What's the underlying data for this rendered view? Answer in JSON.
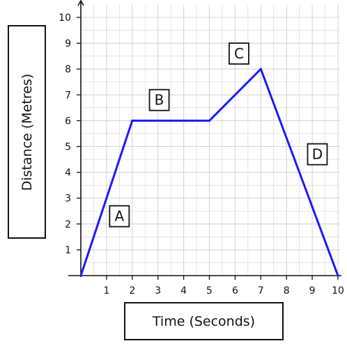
{
  "chart_data": {
    "type": "line",
    "xlabel": "Time (Seconds)",
    "ylabel": "Distance (Metres)",
    "xlim": [
      0,
      10
    ],
    "ylim": [
      0,
      10
    ],
    "x_ticks": [
      1,
      2,
      3,
      4,
      5,
      6,
      7,
      8,
      9,
      10
    ],
    "y_ticks": [
      1,
      2,
      3,
      4,
      5,
      6,
      7,
      8,
      9,
      10
    ],
    "grid": true,
    "series": [
      {
        "x": [
          0,
          2,
          5,
          7,
          10
        ],
        "y": [
          0,
          6,
          6,
          8,
          0
        ],
        "color": "#1a1aff"
      }
    ],
    "annotations": [
      {
        "text": "A",
        "x": 1.5,
        "y": 2.3
      },
      {
        "text": "B",
        "x": 3.05,
        "y": 6.8
      },
      {
        "text": "C",
        "x": 6.15,
        "y": 8.6
      },
      {
        "text": "D",
        "x": 9.2,
        "y": 4.7
      }
    ],
    "colors": {
      "line": "#1a1aff",
      "grid": "#d4d4d4",
      "axis": "#111111"
    }
  }
}
